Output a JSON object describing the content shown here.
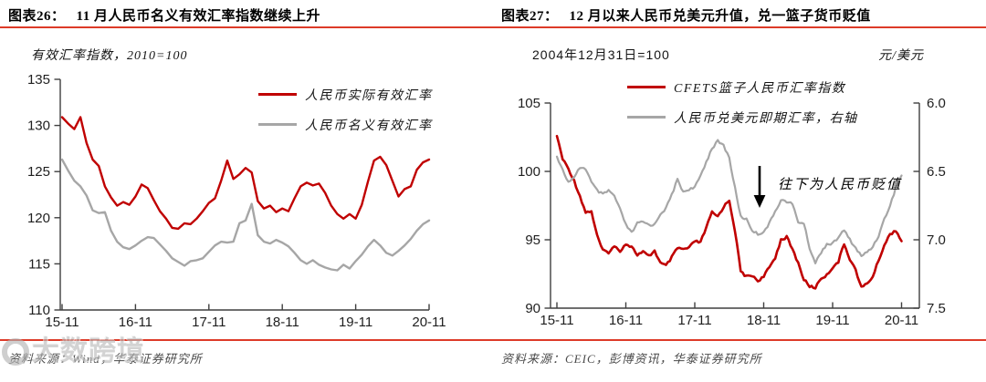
{
  "colors": {
    "accent": "#dd3b28",
    "line_red": "#c00000",
    "line_gray": "#a6a6a6",
    "axis": "#3f3f3f",
    "tick_text": "#1f1f1f",
    "source_text": "#4a4a4a",
    "annotation_arrow": "#000000",
    "watermark_gray": "#b9b9b9"
  },
  "left_panel": {
    "fig_label": "图表26：",
    "title": "11 月人民币名义有效汇率指数继续上升",
    "subtitle": "有效汇率指数，2010=100",
    "legend": [
      {
        "label": "人民币实际有效汇率",
        "color": "#c00000"
      },
      {
        "label": "人民币名义有效汇率",
        "color": "#a6a6a6"
      }
    ],
    "source": "资料来源：Wind，华泰证券研究所",
    "chart_data": {
      "type": "line",
      "title": "有效汇率指数，2010=100",
      "x_tick_labels": [
        "15-11",
        "16-11",
        "17-11",
        "18-11",
        "19-11",
        "20-11"
      ],
      "x_note": "monthly points from 2015-11 to 2020-11",
      "ylim": [
        110,
        135
      ],
      "y_ticks": [
        135,
        130,
        125,
        120,
        115,
        110
      ],
      "grid": false,
      "legend_position": "top-right-inside",
      "series": [
        {
          "name": "人民币实际有效汇率",
          "color": "#c00000",
          "values": [
            130.9,
            130.2,
            129.6,
            130.9,
            128.1,
            126.3,
            125.6,
            123.4,
            122.2,
            121.3,
            121.7,
            121.4,
            122.3,
            123.6,
            123.2,
            121.9,
            120.7,
            119.9,
            118.9,
            118.8,
            119.4,
            119.3,
            119.9,
            120.7,
            121.6,
            122.1,
            124.0,
            126.2,
            124.2,
            124.7,
            125.4,
            124.9,
            121.8,
            121.0,
            121.3,
            120.6,
            121.0,
            120.7,
            122.1,
            123.4,
            123.8,
            123.5,
            123.7,
            122.7,
            121.3,
            120.4,
            119.9,
            120.4,
            119.9,
            121.4,
            123.9,
            126.2,
            126.6,
            125.7,
            124.0,
            122.3,
            123.1,
            123.4,
            125.2,
            126.0,
            126.3
          ]
        },
        {
          "name": "人民币名义有效汇率",
          "color": "#a6a6a6",
          "values": [
            126.3,
            125.1,
            124.0,
            123.4,
            122.4,
            120.8,
            120.5,
            120.6,
            118.6,
            117.4,
            116.8,
            116.6,
            117.0,
            117.5,
            117.9,
            117.8,
            117.1,
            116.4,
            115.6,
            115.2,
            114.8,
            115.3,
            115.4,
            115.6,
            116.3,
            117.0,
            117.4,
            117.3,
            117.4,
            119.4,
            119.7,
            121.5,
            118.1,
            117.4,
            117.2,
            117.6,
            117.3,
            116.9,
            116.2,
            115.4,
            115.0,
            115.4,
            114.9,
            114.6,
            114.4,
            114.3,
            114.9,
            114.5,
            115.3,
            116.0,
            116.9,
            117.6,
            117.0,
            116.2,
            115.9,
            116.4,
            117.0,
            117.7,
            118.6,
            119.3,
            119.7
          ]
        }
      ]
    }
  },
  "right_panel": {
    "fig_label": "图表27：",
    "title": "12 月以来人民币兑美元升值，兑一篮子货币贬值",
    "subtitle": "2004年12月31日=100",
    "unit_label": "元/美元",
    "legend": [
      {
        "label": "CFETS篮子人民币汇率指数",
        "color": "#c00000"
      },
      {
        "label": "人民币兑美元即期汇率，右轴",
        "color": "#a6a6a6"
      }
    ],
    "annotation": "往下为人民币贬值",
    "source": "资料来源：CEIC，彭博资讯，华泰证券研究所",
    "chart_data": {
      "type": "line",
      "x_tick_labels": [
        "15-11",
        "16-11",
        "17-11",
        "18-11",
        "19-11",
        "20-11"
      ],
      "x_note": "monthly points from 2015-11 to 2020-11",
      "left_ylim": [
        90,
        105
      ],
      "left_y_ticks": [
        105,
        100,
        95,
        90
      ],
      "right_ylim": [
        6.0,
        7.5
      ],
      "right_y_ticks": [
        "6.0",
        "6.5",
        "7.0",
        "7.5"
      ],
      "right_axis_inverted_display": true,
      "grid": false,
      "legend_position": "top-center-inside",
      "series": [
        {
          "name": "CFETS篮子人民币汇率指数",
          "axis": "left",
          "color": "#c00000",
          "values": [
            102.6,
            100.9,
            100.2,
            99.3,
            98.2,
            97.0,
            97.1,
            95.3,
            94.2,
            94.1,
            94.5,
            94.2,
            94.7,
            94.5,
            93.9,
            94.1,
            93.8,
            94.2,
            93.3,
            93.1,
            93.7,
            94.4,
            94.3,
            94.4,
            94.9,
            94.8,
            95.9,
            97.0,
            96.7,
            97.4,
            97.9,
            95.7,
            92.7,
            92.3,
            92.4,
            92.0,
            92.3,
            93.0,
            93.7,
            95.0,
            95.2,
            94.3,
            93.3,
            92.1,
            91.6,
            91.5,
            92.2,
            92.4,
            93.0,
            93.4,
            94.7,
            93.6,
            92.8,
            91.5,
            91.8,
            92.3,
            93.5,
            94.6,
            95.4,
            95.7,
            94.9
          ]
        },
        {
          "name": "人民币兑美元即期汇率，右轴",
          "axis": "right",
          "color": "#a6a6a6",
          "values": [
            6.39,
            6.49,
            6.58,
            6.55,
            6.47,
            6.48,
            6.58,
            6.64,
            6.67,
            6.64,
            6.68,
            6.78,
            6.89,
            6.95,
            6.88,
            6.87,
            6.89,
            6.89,
            6.81,
            6.77,
            6.67,
            6.56,
            6.65,
            6.63,
            6.62,
            6.53,
            6.43,
            6.33,
            6.28,
            6.31,
            6.4,
            6.62,
            6.83,
            6.85,
            6.93,
            6.96,
            6.94,
            6.88,
            6.79,
            6.71,
            6.72,
            6.74,
            6.87,
            6.88,
            7.06,
            7.17,
            7.09,
            7.03,
            7.03,
            6.98,
            6.93,
            7.0,
            7.06,
            7.12,
            7.09,
            7.05,
            6.97,
            6.85,
            6.75,
            6.62,
            6.53
          ]
        }
      ]
    }
  },
  "watermark": {
    "text": "大数跨境"
  }
}
